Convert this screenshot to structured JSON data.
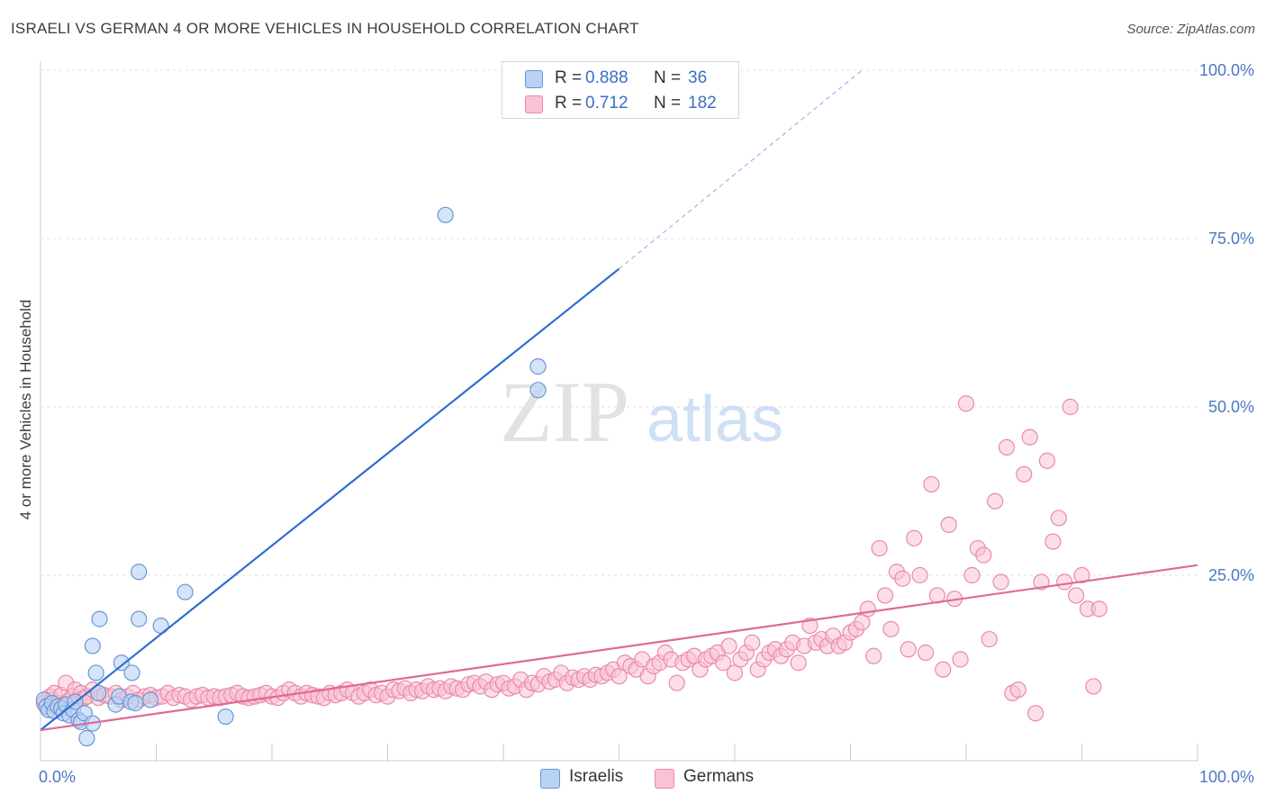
{
  "title": "ISRAELI VS GERMAN 4 OR MORE VEHICLES IN HOUSEHOLD CORRELATION CHART",
  "source": "Source: ZipAtlas.com",
  "watermark": {
    "zip": "ZIP",
    "atlas": "atlas"
  },
  "legend": {
    "israelis": {
      "r_label": "R =",
      "r_value": "0.888",
      "n_label": "N =",
      "n_value": "36"
    },
    "germans": {
      "r_label": "R =",
      "r_value": "0.712",
      "n_label": "N =",
      "n_value": "182"
    }
  },
  "bottom_legend": {
    "israelis": "Israelis",
    "germans": "Germans"
  },
  "chart_data": {
    "type": "scatter",
    "ylabel": "4 or more Vehicles in Household",
    "xlabel": "",
    "xlim": [
      0,
      100
    ],
    "ylim": [
      0,
      100
    ],
    "x_tick_labels": [
      {
        "value": 0,
        "label": "0.0%"
      },
      {
        "value": 100,
        "label": "100.0%"
      }
    ],
    "y_tick_labels": [
      {
        "value": 25,
        "label": "25.0%"
      },
      {
        "value": 50,
        "label": "50.0%"
      },
      {
        "value": 75,
        "label": "75.0%"
      },
      {
        "value": 100,
        "label": "100.0%"
      }
    ],
    "grid": true,
    "colors": {
      "israelis_fill": "#b9d2f3",
      "israelis_stroke": "#6b96d6",
      "israelis_line": "#2f6fcf",
      "germans_fill": "#f9c3d4",
      "germans_stroke": "#e98aaa",
      "germans_line": "#e06a93"
    },
    "series": [
      {
        "name": "Israelis",
        "points": [
          [
            0.3,
            6.5
          ],
          [
            0.5,
            5.5
          ],
          [
            0.7,
            5.0
          ],
          [
            1.0,
            6.0
          ],
          [
            1.2,
            4.8
          ],
          [
            1.5,
            5.5
          ],
          [
            1.8,
            5.2
          ],
          [
            2.0,
            4.5
          ],
          [
            2.2,
            5.8
          ],
          [
            2.5,
            4.2
          ],
          [
            2.8,
            5.0
          ],
          [
            3.0,
            6.2
          ],
          [
            3.3,
            3.5
          ],
          [
            3.5,
            3.2
          ],
          [
            3.8,
            4.5
          ],
          [
            4.0,
            0.8
          ],
          [
            4.5,
            3.0
          ],
          [
            5.0,
            7.5
          ],
          [
            4.8,
            10.5
          ],
          [
            5.1,
            18.5
          ],
          [
            4.5,
            14.5
          ],
          [
            6.5,
            5.8
          ],
          [
            6.8,
            7.0
          ],
          [
            7.0,
            12.0
          ],
          [
            7.8,
            6.2
          ],
          [
            8.2,
            6.0
          ],
          [
            7.9,
            10.5
          ],
          [
            8.5,
            25.5
          ],
          [
            8.5,
            18.5
          ],
          [
            9.5,
            6.5
          ],
          [
            10.4,
            17.5
          ],
          [
            12.5,
            22.5
          ],
          [
            16.0,
            4.0
          ],
          [
            35.0,
            78.5
          ],
          [
            43.0,
            56.0
          ],
          [
            43.0,
            52.5
          ]
        ]
      },
      {
        "name": "Germans",
        "points": [
          [
            0.3,
            6.0
          ],
          [
            0.5,
            5.5
          ],
          [
            0.8,
            7.0
          ],
          [
            1.0,
            6.5
          ],
          [
            1.2,
            7.5
          ],
          [
            1.5,
            6.0
          ],
          [
            1.8,
            7.2
          ],
          [
            2.0,
            5.8
          ],
          [
            2.2,
            9.0
          ],
          [
            2.5,
            6.5
          ],
          [
            2.8,
            7.0
          ],
          [
            3.0,
            8.0
          ],
          [
            3.3,
            6.5
          ],
          [
            3.5,
            7.5
          ],
          [
            3.8,
            6.8
          ],
          [
            4.0,
            7.0
          ],
          [
            4.5,
            8.0
          ],
          [
            5.0,
            6.8
          ],
          [
            5.5,
            7.2
          ],
          [
            6.0,
            7.0
          ],
          [
            6.5,
            7.5
          ],
          [
            7.0,
            6.5
          ],
          [
            7.5,
            7.0
          ],
          [
            8.0,
            7.5
          ],
          [
            8.5,
            6.5
          ],
          [
            9.0,
            7.0
          ],
          [
            9.5,
            7.2
          ],
          [
            10.0,
            6.8
          ],
          [
            10.5,
            7.0
          ],
          [
            11.0,
            7.5
          ],
          [
            11.5,
            6.8
          ],
          [
            12.0,
            7.2
          ],
          [
            12.5,
            7.0
          ],
          [
            13.0,
            6.5
          ],
          [
            13.5,
            7.0
          ],
          [
            14.0,
            7.2
          ],
          [
            14.5,
            6.8
          ],
          [
            15.0,
            7.0
          ],
          [
            15.5,
            6.8
          ],
          [
            16.0,
            7.0
          ],
          [
            16.5,
            7.2
          ],
          [
            17.0,
            7.5
          ],
          [
            17.5,
            7.0
          ],
          [
            18.0,
            6.8
          ],
          [
            18.5,
            7.0
          ],
          [
            19.0,
            7.2
          ],
          [
            19.5,
            7.5
          ],
          [
            20.0,
            7.0
          ],
          [
            20.5,
            6.8
          ],
          [
            21.0,
            7.5
          ],
          [
            21.5,
            8.0
          ],
          [
            22.0,
            7.5
          ],
          [
            22.5,
            7.0
          ],
          [
            23.0,
            7.5
          ],
          [
            23.5,
            7.2
          ],
          [
            24.0,
            7.0
          ],
          [
            24.5,
            6.8
          ],
          [
            25.0,
            7.5
          ],
          [
            25.5,
            7.2
          ],
          [
            26.0,
            7.5
          ],
          [
            26.5,
            8.0
          ],
          [
            27.0,
            7.5
          ],
          [
            27.5,
            7.0
          ],
          [
            28.0,
            7.5
          ],
          [
            28.5,
            8.0
          ],
          [
            29.0,
            7.2
          ],
          [
            29.5,
            7.5
          ],
          [
            30.0,
            7.0
          ],
          [
            30.5,
            8.0
          ],
          [
            31.0,
            7.8
          ],
          [
            31.5,
            8.2
          ],
          [
            32.0,
            7.5
          ],
          [
            32.5,
            8.0
          ],
          [
            33.0,
            7.8
          ],
          [
            33.5,
            8.5
          ],
          [
            34.0,
            8.0
          ],
          [
            34.5,
            8.2
          ],
          [
            35.0,
            7.8
          ],
          [
            35.5,
            8.5
          ],
          [
            36.0,
            8.2
          ],
          [
            36.5,
            8.0
          ],
          [
            37.0,
            8.8
          ],
          [
            37.5,
            9.0
          ],
          [
            38.0,
            8.5
          ],
          [
            38.5,
            9.2
          ],
          [
            39.0,
            8.0
          ],
          [
            39.5,
            8.8
          ],
          [
            40.0,
            9.0
          ],
          [
            40.5,
            8.2
          ],
          [
            41.0,
            8.5
          ],
          [
            41.5,
            9.5
          ],
          [
            42.0,
            8.0
          ],
          [
            42.5,
            9.0
          ],
          [
            43.0,
            8.8
          ],
          [
            43.5,
            10.0
          ],
          [
            44.0,
            9.2
          ],
          [
            44.5,
            9.5
          ],
          [
            45.0,
            10.5
          ],
          [
            45.5,
            9.0
          ],
          [
            46.0,
            9.8
          ],
          [
            46.5,
            9.5
          ],
          [
            47.0,
            10.0
          ],
          [
            47.5,
            9.5
          ],
          [
            48.0,
            10.2
          ],
          [
            48.5,
            10.0
          ],
          [
            49.0,
            10.5
          ],
          [
            49.5,
            11.0
          ],
          [
            50.0,
            10.0
          ],
          [
            50.5,
            12.0
          ],
          [
            51.0,
            11.5
          ],
          [
            51.5,
            11.0
          ],
          [
            52.0,
            12.5
          ],
          [
            52.5,
            10.0
          ],
          [
            53.0,
            11.5
          ],
          [
            53.5,
            12.0
          ],
          [
            54.0,
            13.5
          ],
          [
            54.5,
            12.5
          ],
          [
            55.0,
            9.0
          ],
          [
            55.5,
            12.0
          ],
          [
            56.0,
            12.5
          ],
          [
            56.5,
            13.0
          ],
          [
            57.0,
            11.0
          ],
          [
            57.5,
            12.5
          ],
          [
            58.0,
            13.0
          ],
          [
            58.5,
            13.5
          ],
          [
            59.0,
            12.0
          ],
          [
            59.5,
            14.5
          ],
          [
            60.0,
            10.5
          ],
          [
            60.5,
            12.5
          ],
          [
            61.0,
            13.5
          ],
          [
            61.5,
            15.0
          ],
          [
            62.0,
            11.0
          ],
          [
            62.5,
            12.5
          ],
          [
            63.0,
            13.5
          ],
          [
            63.5,
            14.0
          ],
          [
            64.0,
            13.0
          ],
          [
            64.5,
            14.0
          ],
          [
            65.0,
            15.0
          ],
          [
            65.5,
            12.0
          ],
          [
            66.0,
            14.5
          ],
          [
            66.5,
            17.5
          ],
          [
            67.0,
            15.0
          ],
          [
            67.5,
            15.5
          ],
          [
            68.0,
            14.5
          ],
          [
            68.5,
            16.0
          ],
          [
            69.0,
            14.5
          ],
          [
            69.5,
            15.0
          ],
          [
            70.0,
            16.5
          ],
          [
            70.5,
            17.0
          ],
          [
            71.0,
            18.0
          ],
          [
            71.5,
            20.0
          ],
          [
            72.0,
            13.0
          ],
          [
            72.5,
            29.0
          ],
          [
            73.0,
            22.0
          ],
          [
            73.5,
            17.0
          ],
          [
            74.0,
            25.5
          ],
          [
            74.5,
            24.5
          ],
          [
            75.0,
            14.0
          ],
          [
            75.5,
            30.5
          ],
          [
            76.0,
            25.0
          ],
          [
            76.5,
            13.5
          ],
          [
            77.0,
            38.5
          ],
          [
            77.5,
            22.0
          ],
          [
            78.0,
            11.0
          ],
          [
            78.5,
            32.5
          ],
          [
            79.0,
            21.5
          ],
          [
            79.5,
            12.5
          ],
          [
            80.0,
            50.5
          ],
          [
            80.5,
            25.0
          ],
          [
            81.0,
            29.0
          ],
          [
            81.5,
            28.0
          ],
          [
            82.0,
            15.5
          ],
          [
            82.5,
            36.0
          ],
          [
            83.0,
            24.0
          ],
          [
            83.5,
            44.0
          ],
          [
            84.0,
            7.5
          ],
          [
            84.5,
            8.0
          ],
          [
            85.0,
            40.0
          ],
          [
            85.5,
            45.5
          ],
          [
            86.0,
            4.5
          ],
          [
            86.5,
            24.0
          ],
          [
            87.0,
            42.0
          ],
          [
            87.5,
            30.0
          ],
          [
            88.0,
            33.5
          ],
          [
            88.5,
            24.0
          ],
          [
            89.0,
            50.0
          ],
          [
            89.5,
            22.0
          ],
          [
            90.0,
            25.0
          ],
          [
            90.5,
            20.0
          ],
          [
            91.0,
            8.5
          ],
          [
            91.5,
            20.0
          ]
        ]
      }
    ],
    "trendlines": [
      {
        "series": "Israelis",
        "from": [
          0,
          2.0
        ],
        "to": [
          50,
          70.5
        ],
        "dashed_to": [
          71,
          100
        ]
      },
      {
        "series": "Germans",
        "from": [
          0,
          2.0
        ],
        "to": [
          100,
          26.5
        ]
      }
    ]
  }
}
